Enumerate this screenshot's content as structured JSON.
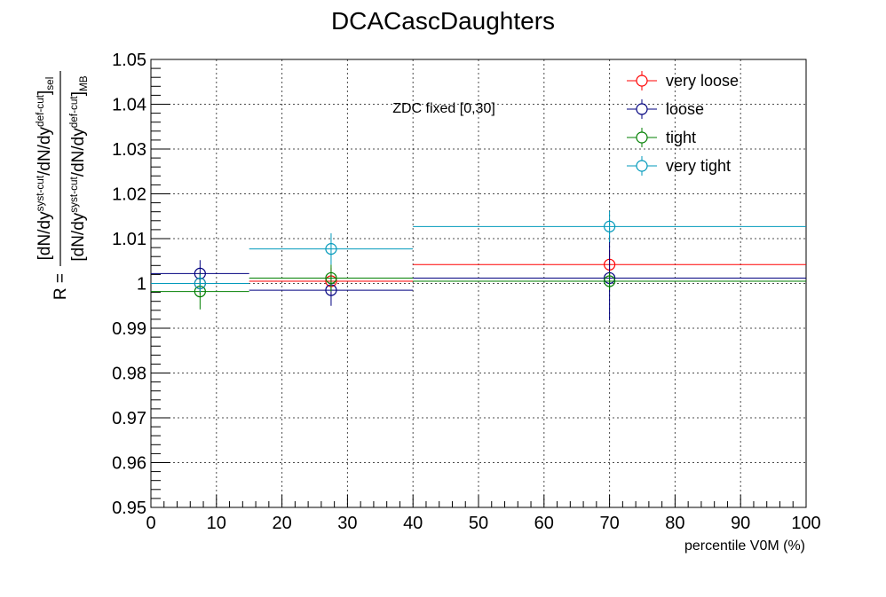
{
  "chart_data": {
    "type": "scatter",
    "title": "DCACascDaughters",
    "xlabel": "percentile V0M (%)",
    "ylabel": {
      "prefix": "R =",
      "numerator": "[dN/dy^{syst-cut}/dN/dy^{def-cut}]_{sel}",
      "denominator": "[dN/dy^{syst-cut}/dN/dy^{def-cut}]_{MB}"
    },
    "annotation": "ZDC fixed [0,30]",
    "xlim": [
      0,
      100
    ],
    "ylim": [
      0.95,
      1.05
    ],
    "x_ticks": [
      0,
      10,
      20,
      30,
      40,
      50,
      60,
      70,
      80,
      90,
      100
    ],
    "y_ticks": [
      0.95,
      0.96,
      0.97,
      0.98,
      0.99,
      1,
      1.01,
      1.02,
      1.03,
      1.04,
      1.05
    ],
    "x_tick_labels": [
      "0",
      "10",
      "20",
      "30",
      "40",
      "50",
      "60",
      "70",
      "80",
      "90",
      "100"
    ],
    "y_tick_labels": [
      "0.95",
      "0.96",
      "0.97",
      "0.98",
      "0.99",
      "1",
      "1.01",
      "1.02",
      "1.03",
      "1.04",
      "1.05"
    ],
    "grid": true,
    "legend_position": "top-right",
    "series": [
      {
        "name": "very loose",
        "color": "#ff0000",
        "points": [
          {
            "x": 7.5,
            "xlow": 0,
            "xhigh": 15,
            "y": 1.0,
            "yerr": 0.0025
          },
          {
            "x": 27.5,
            "xlow": 15,
            "xhigh": 40,
            "y": 1.0005,
            "yerr": 0.003
          },
          {
            "x": 70,
            "xlow": 40,
            "xhigh": 100,
            "y": 1.0042,
            "yerr": 0.003
          }
        ]
      },
      {
        "name": "loose",
        "color": "#00007f",
        "points": [
          {
            "x": 7.5,
            "xlow": 0,
            "xhigh": 15,
            "y": 1.0022,
            "yerr": 0.003
          },
          {
            "x": 27.5,
            "xlow": 15,
            "xhigh": 40,
            "y": 0.9985,
            "yerr": 0.0035
          },
          {
            "x": 70,
            "xlow": 40,
            "xhigh": 100,
            "y": 1.0012,
            "yerr": 0.0095
          }
        ]
      },
      {
        "name": "tight",
        "color": "#007f00",
        "points": [
          {
            "x": 7.5,
            "xlow": 0,
            "xhigh": 15,
            "y": 0.9982,
            "yerr": 0.004
          },
          {
            "x": 27.5,
            "xlow": 15,
            "xhigh": 40,
            "y": 1.0012,
            "yerr": 0.003
          },
          {
            "x": 70,
            "xlow": 40,
            "xhigh": 100,
            "y": 1.0005,
            "yerr": 0.002
          }
        ]
      },
      {
        "name": "very tight",
        "color": "#0099bb",
        "points": [
          {
            "x": 7.5,
            "xlow": 0,
            "xhigh": 15,
            "y": 1.0,
            "yerr": 0.002
          },
          {
            "x": 27.5,
            "xlow": 15,
            "xhigh": 40,
            "y": 1.0077,
            "yerr": 0.0035
          },
          {
            "x": 70,
            "xlow": 40,
            "xhigh": 100,
            "y": 1.0127,
            "yerr": 0.0035
          }
        ]
      }
    ]
  }
}
